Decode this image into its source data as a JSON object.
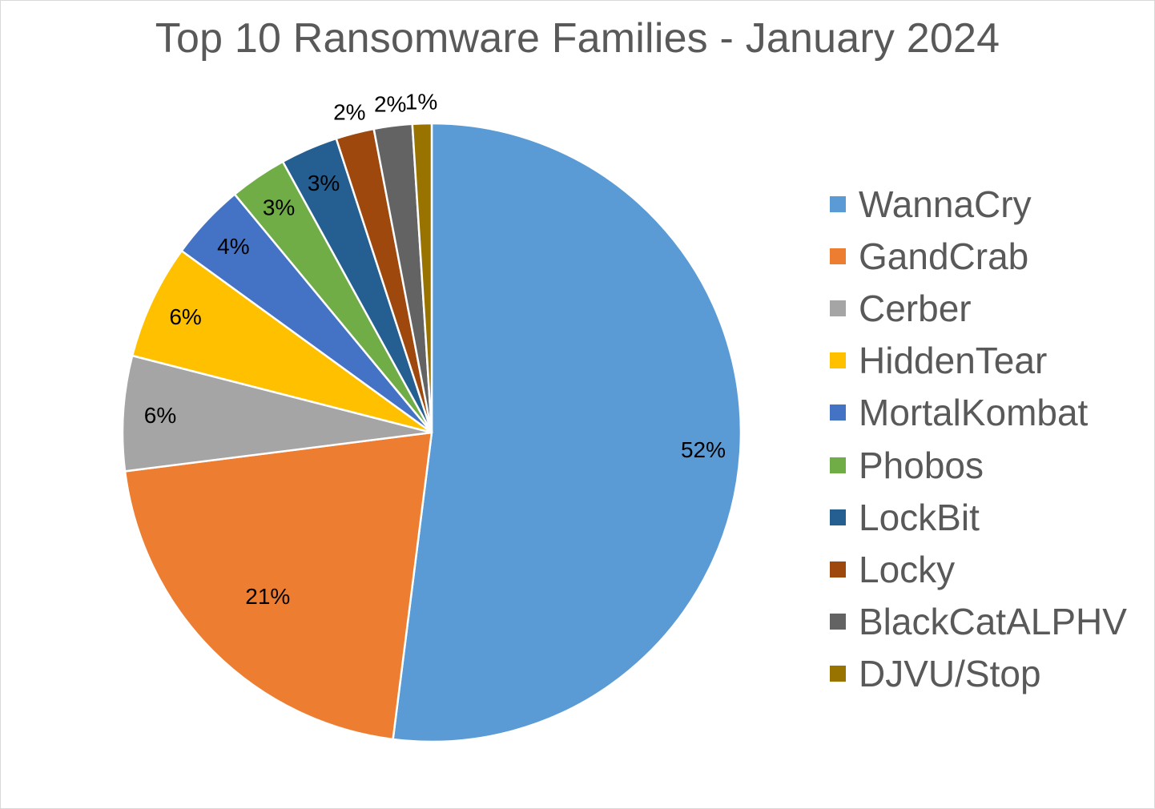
{
  "chart_data": {
    "type": "pie",
    "title": "Top 10 Ransomware Families - January 2024",
    "categories": [
      "WannaCry",
      "GandCrab",
      "Cerber",
      "HiddenTear",
      "MortalKombat",
      "Phobos",
      "LockBit",
      "Locky",
      "BlackCatALPHV",
      "DJVU/Stop"
    ],
    "values": [
      52,
      21,
      6,
      6,
      4,
      3,
      3,
      2,
      2,
      1
    ],
    "data_labels": [
      "52%",
      "21%",
      "6%",
      "6%",
      "4%",
      "3%",
      "3%",
      "2%",
      "2%",
      "1%"
    ],
    "colors": [
      "#5b9bd5",
      "#ed7d31",
      "#a5a5a5",
      "#ffc000",
      "#4472c4",
      "#70ad47",
      "#255e91",
      "#9e480e",
      "#636363",
      "#997300"
    ],
    "legend_position": "right"
  }
}
